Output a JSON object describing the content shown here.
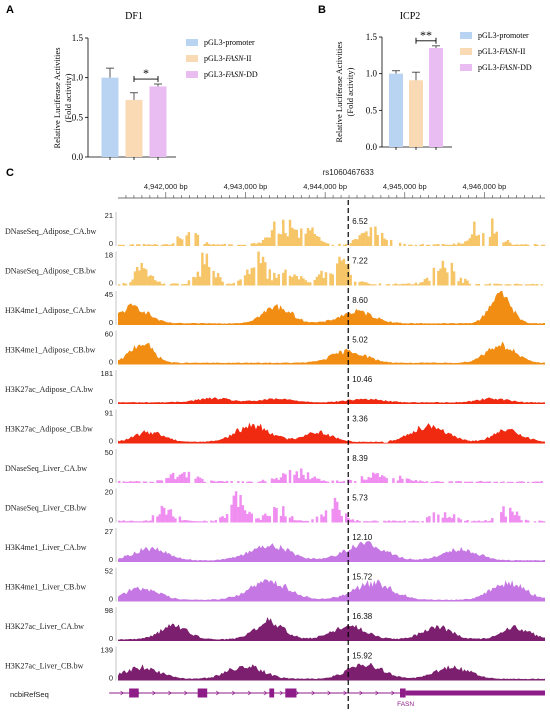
{
  "panels": {
    "A": {
      "letter": "A",
      "title": "DF1",
      "ylabel_line1": "Relative Luciferase Activities",
      "ylabel_line2": "(Fold activity)",
      "ylim": [
        0,
        1.5
      ],
      "yticks": [
        "0.0",
        "0.5",
        "1.0",
        "1.5"
      ],
      "significance": "*",
      "chart_data": {
        "type": "bar",
        "categories": [
          "pGL3-promoter",
          "pGL3-FASN-II",
          "pGL3-FASN-DD"
        ],
        "values": [
          1.0,
          0.72,
          0.89
        ],
        "errors": [
          0.12,
          0.09,
          0.03
        ],
        "colors": [
          "#b9d3f2",
          "#fad9b5",
          "#eabdf2"
        ]
      }
    },
    "B": {
      "letter": "B",
      "title": "ICP2",
      "ylabel_line1": "Relative Luciferase Activities",
      "ylabel_line2": "(Fold activity)",
      "ylim": [
        0,
        1.5
      ],
      "yticks": [
        "0.0",
        "0.5",
        "1.0",
        "1.5"
      ],
      "significance": "**",
      "chart_data": {
        "type": "bar",
        "categories": [
          "pGL3-promoter",
          "pGL3-FASN-II",
          "pGL3-FASN-DD"
        ],
        "values": [
          1.0,
          0.91,
          1.35
        ],
        "errors": [
          0.04,
          0.11,
          0.03
        ],
        "colors": [
          "#b9d3f2",
          "#fad9b5",
          "#eabdf2"
        ]
      }
    }
  },
  "legend": [
    {
      "prefix": "pGL3-promoter",
      "italic": "",
      "suffix": ""
    },
    {
      "prefix": "pGL3-",
      "italic": "FASN",
      "suffix": "-II"
    },
    {
      "prefix": "pGL3-",
      "italic": "FASN",
      "suffix": "-DD"
    }
  ],
  "browser": {
    "letter": "C",
    "snp": "rs1060467633",
    "snp_position": 4944290,
    "range": [
      4941400,
      4946760
    ],
    "coord_ticks": [
      {
        "pos": 4942000,
        "label": "4,942,000 bp"
      },
      {
        "pos": 4943000,
        "label": "4,943,000 bp"
      },
      {
        "pos": 4944000,
        "label": "4,944,000 bp"
      },
      {
        "pos": 4945000,
        "label": "4,945,000 bp"
      },
      {
        "pos": 4946000,
        "label": "4,946,000 bp"
      }
    ],
    "tracks": [
      {
        "name": "DNaseSeq_Adipose_CA.bw",
        "max": "21",
        "value": "6.52",
        "color": "#f6c567",
        "style": "bar"
      },
      {
        "name": "DNaseSeq_Adipose_CB.bw",
        "max": "18",
        "value": "7.22",
        "color": "#f6c567",
        "style": "bar"
      },
      {
        "name": "H3K4me1_Adipose_CA.bw",
        "max": "45",
        "value": "8.60",
        "color": "#f18d12",
        "style": "smooth"
      },
      {
        "name": "H3K4me1_Adipose_CB.bw",
        "max": "60",
        "value": "5.02",
        "color": "#f18d12",
        "style": "smooth"
      },
      {
        "name": "H3K27ac_Adipose_CA.bw",
        "max": "181",
        "value": "10.46",
        "color": "#ef2a10",
        "style": "smooth"
      },
      {
        "name": "H3K27ac_Adipose_CB.bw",
        "max": "91",
        "value": "3.36",
        "color": "#ef2a10",
        "style": "smooth"
      },
      {
        "name": "DNaseSeq_Liver_CA.bw",
        "max": "50",
        "value": "8.39",
        "color": "#ef8ef0",
        "style": "bar"
      },
      {
        "name": "DNaseSeq_Liver_CB.bw",
        "max": "20",
        "value": "5.73",
        "color": "#ef8ef0",
        "style": "bar"
      },
      {
        "name": "H3K4me1_Liver_CA.bw",
        "max": "27",
        "value": "12.10",
        "color": "#c577e3",
        "style": "smooth"
      },
      {
        "name": "H3K4me1_Liver_CB.bw",
        "max": "52",
        "value": "15.72",
        "color": "#c577e3",
        "style": "smooth"
      },
      {
        "name": "H3K27ac_Liver_CA.bw",
        "max": "98",
        "value": "16.38",
        "color": "#7b1f6e",
        "style": "smooth"
      },
      {
        "name": "H3K27ac_Liver_CB.bw",
        "max": "139",
        "value": "15.92",
        "color": "#7b1f6e",
        "style": "smooth"
      }
    ],
    "refseq": {
      "label": "ncbiRefSeq",
      "gene": "FASN",
      "color": "#8e1c88",
      "exons": [
        [
          4941540,
          4941660
        ],
        [
          4942400,
          4942520
        ],
        [
          4943300,
          4943360
        ],
        [
          4943500,
          4943640
        ],
        [
          4944940,
          4945010
        ],
        [
          4945010,
          4946760
        ]
      ]
    }
  }
}
